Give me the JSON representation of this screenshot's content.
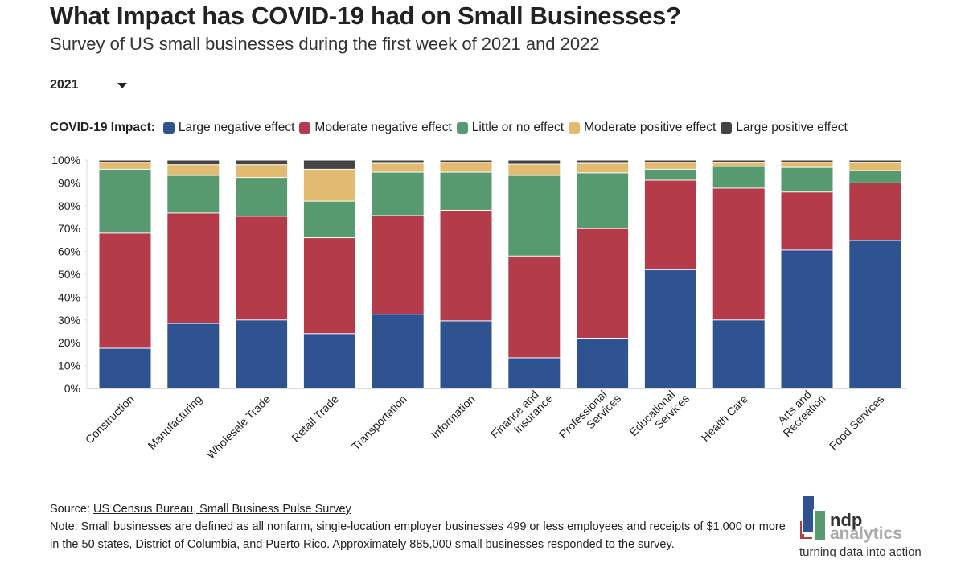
{
  "header": {
    "title": "What Impact has COVID-19 had on Small Businesses?",
    "subtitle": "Survey of US small businesses during the first week of 2021 and 2022"
  },
  "year_select": {
    "selected": "2021"
  },
  "legend": {
    "title": "COVID-19 Impact:"
  },
  "chart_data": {
    "type": "bar",
    "stacked": true,
    "title": "What Impact has COVID-19 had on Small Businesses?",
    "ylabel": "",
    "xlabel": "",
    "ylim": [
      0,
      100
    ],
    "yticks": [
      "0%",
      "10%",
      "20%",
      "30%",
      "40%",
      "50%",
      "60%",
      "70%",
      "80%",
      "90%",
      "100%"
    ],
    "categories": [
      "Construction",
      "Manufacturing",
      "Wholesale Trade",
      "Retail Trade",
      "Transportation",
      "Information",
      "Finance and Insurance",
      "Professional Services",
      "Educational Services",
      "Health Care",
      "Arts and Recreation",
      "Food Services"
    ],
    "series": [
      {
        "name": "Large negative effect",
        "color": "#2f5390",
        "values": [
          17.6,
          28.5,
          30,
          24,
          32.5,
          29.6,
          13.4,
          22,
          52,
          30,
          60.6,
          64.8
        ]
      },
      {
        "name": "Moderate negative effect",
        "color": "#b33b4a",
        "values": [
          50.4,
          48.3,
          45.4,
          42,
          43.2,
          48.4,
          44.6,
          48,
          39.2,
          57.7,
          25.4,
          25.2
        ]
      },
      {
        "name": "Little or no effect",
        "color": "#579a6f",
        "values": [
          28,
          16.5,
          17,
          16,
          19,
          16.7,
          35.3,
          24.4,
          4.8,
          9.5,
          10.8,
          5.4
        ]
      },
      {
        "name": "Moderate positive effect",
        "color": "#e2bb70",
        "values": [
          3,
          4.7,
          5.6,
          14,
          3.9,
          4.3,
          4.9,
          4.2,
          3,
          1.7,
          2.2,
          3.5
        ]
      },
      {
        "name": "Large positive effect",
        "color": "#444444",
        "values": [
          1,
          2,
          2,
          4,
          1.4,
          1,
          1.8,
          1.4,
          1,
          1.1,
          1,
          1.1
        ]
      }
    ]
  },
  "footer": {
    "source_label": "Source: ",
    "source_link": "US Census Bureau, Small Business Pulse Survey",
    "note": "Note: Small businesses are defined as all nonfarm, single-location employer businesses 499 or less employees and receipts of $1,000 or more in the 50 states, District of Columbia, and Puerto Rico. Approximately 885,000 small businesses responded to the survey."
  },
  "logo": {
    "name": "ndp",
    "sub": "analytics",
    "tagline": "turning data into action"
  }
}
